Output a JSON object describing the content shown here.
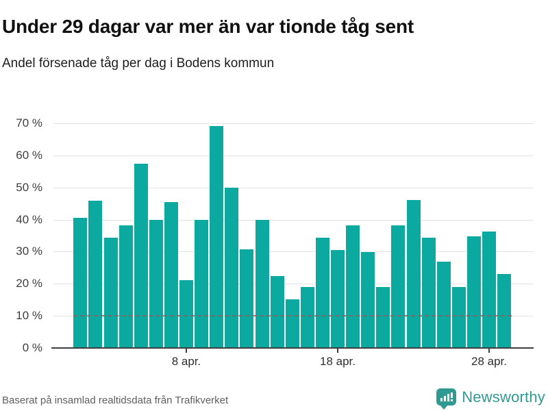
{
  "header": {
    "title": "Under 29 dagar var mer än var tionde tåg sent",
    "subtitle": "Andel försenade tåg per dag i Bodens kommun"
  },
  "chart_data": {
    "type": "bar",
    "title": "Under 29 dagar var mer än var tionde tåg sent",
    "subtitle": "Andel försenade tåg per dag i Bodens kommun",
    "unit": "%",
    "categories": [
      "1 apr.",
      "2 apr.",
      "3 apr.",
      "4 apr.",
      "5 apr.",
      "6 apr.",
      "7 apr.",
      "8 apr.",
      "9 apr.",
      "10 apr.",
      "11 apr.",
      "12 apr.",
      "13 apr.",
      "14 apr.",
      "15 apr.",
      "16 apr.",
      "17 apr.",
      "18 apr.",
      "19 apr.",
      "20 apr.",
      "21 apr.",
      "22 apr.",
      "23 apr.",
      "24 apr.",
      "25 apr.",
      "26 apr.",
      "27 apr.",
      "28 apr.",
      "29 apr."
    ],
    "values": [
      40.6,
      45.9,
      34.4,
      38.1,
      57.5,
      39.9,
      45.4,
      21.2,
      39.9,
      69.1,
      49.9,
      30.7,
      39.9,
      22.5,
      15.1,
      19.0,
      34.4,
      30.6,
      38.2,
      29.8,
      18.9,
      38.2,
      46.1,
      34.4,
      26.8,
      18.9,
      34.8,
      36.2,
      23.0
    ],
    "xticks": [
      {
        "label": "8 apr.",
        "index": 7
      },
      {
        "label": "18 apr.",
        "index": 17
      },
      {
        "label": "28 apr.",
        "index": 27
      }
    ],
    "yticks": [
      0,
      10,
      20,
      30,
      40,
      50,
      60,
      70
    ],
    "ytick_suffix": " %",
    "ylim": [
      0,
      70
    ],
    "grid": true,
    "legend": false,
    "reference_line": {
      "value": 10,
      "style": "dashed"
    },
    "bar_color": "#0ba9a0"
  },
  "footer": {
    "source": "Baserat på insamlad realtidsdata från Trafikverket",
    "brand": "Newsworthy"
  },
  "colors": {
    "bar": "#0ba9a0",
    "brand_teal": "#2f9a92",
    "grid": "#e2e2e2",
    "axis": "#3f3f3f",
    "reference": "#8a625c"
  }
}
